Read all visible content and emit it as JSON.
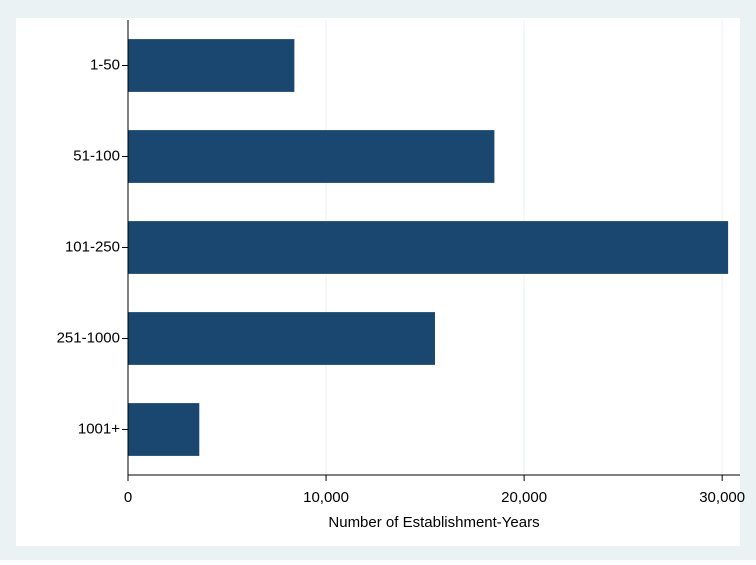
{
  "chart_data": {
    "type": "hbar",
    "categories": [
      "1-50",
      "51-100",
      "101-250",
      "251-1000",
      "1001+"
    ],
    "values": [
      8400,
      18500,
      30300,
      15500,
      3600
    ],
    "color": "#1a476f",
    "x_label": "Number of Establishment-Years",
    "xlim": [
      0,
      30900
    ],
    "xticks": [
      0,
      {
        "value": 10000,
        "label": "10,000"
      },
      {
        "value": 20000,
        "label": "20,000"
      },
      {
        "value": 30000,
        "label": "30,000"
      }
    ],
    "grid": true
  }
}
